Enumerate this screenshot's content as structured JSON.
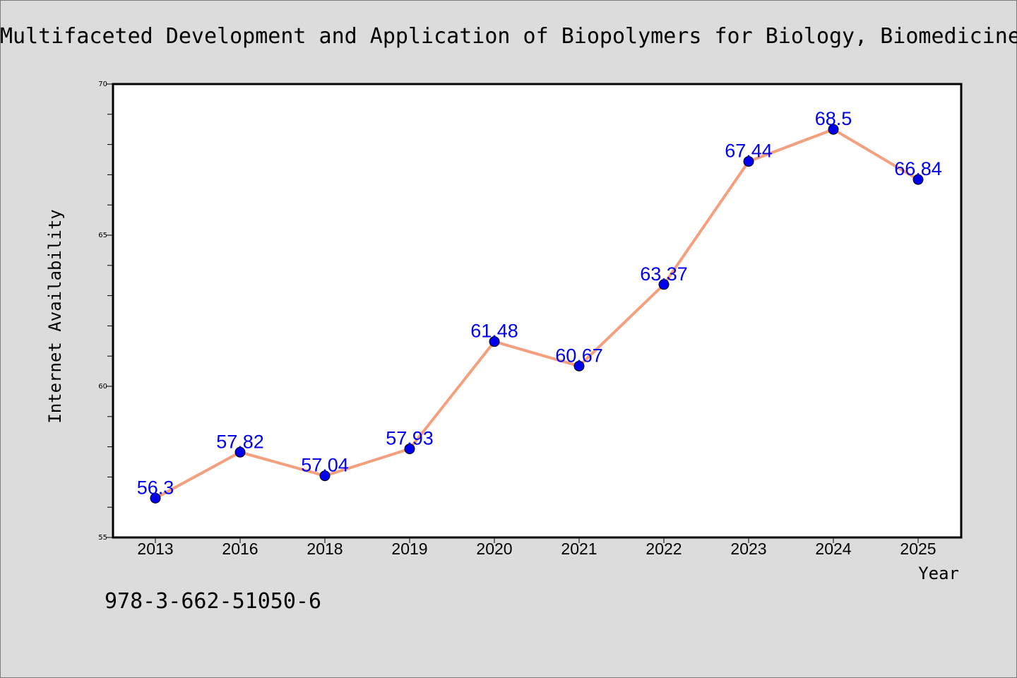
{
  "chart_data": {
    "type": "line",
    "title": "Multifaceted Development and Application of Biopolymers for Biology, Biomedicine",
    "xlabel": "Year",
    "ylabel": "Internet Availability",
    "categories": [
      "2013",
      "2016",
      "2018",
      "2019",
      "2020",
      "2021",
      "2022",
      "2023",
      "2024",
      "2025"
    ],
    "series": [
      {
        "values": [
          56.3,
          57.82,
          57.04,
          57.93,
          61.48,
          60.67,
          63.37,
          67.44,
          68.5,
          66.84
        ],
        "line_color": "#f4a07e",
        "marker_color": "#0000ee"
      }
    ],
    "data_labels": [
      "56.3",
      "57.82",
      "57.04",
      "57.93",
      "61.48",
      "60.67",
      "63.37",
      "67.44",
      "68.5",
      "66.84"
    ],
    "ylim": [
      55,
      70
    ],
    "y_major_ticks": [
      55,
      60,
      65,
      70
    ],
    "y_tick_labels": [
      "55",
      "60",
      "65",
      "70"
    ],
    "grid": false,
    "legend": "none",
    "label_color": "#0000ee"
  },
  "footer": {
    "isbn": "978-3-662-51050-6"
  }
}
